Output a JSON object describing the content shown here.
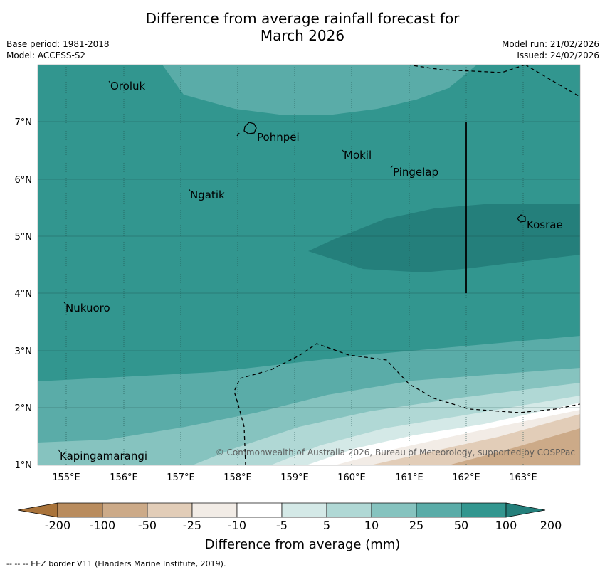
{
  "title": {
    "line1": "Difference from average rainfall forecast for",
    "line2": "March 2026"
  },
  "meta": {
    "base_period": "Base period: 1981-2018",
    "model": "Model: ACCESS-S2",
    "model_run": "Model run: 21/02/2026",
    "issued": "Issued: 24/02/2026"
  },
  "map": {
    "lon_ticks": [
      "155°E",
      "156°E",
      "157°E",
      "158°E",
      "159°E",
      "160°E",
      "161°E",
      "162°E",
      "163°E"
    ],
    "lat_ticks": [
      "7°N",
      "6°N",
      "5°N",
      "4°N",
      "3°N",
      "2°N",
      "1°N"
    ],
    "places": [
      {
        "name": "Oroluk"
      },
      {
        "name": "Pohnpei"
      },
      {
        "name": "Mokil"
      },
      {
        "name": "Pingelap"
      },
      {
        "name": "Ngatik"
      },
      {
        "name": "Kosrae"
      },
      {
        "name": "Nukuoro"
      },
      {
        "name": "Kapingamarangi"
      }
    ],
    "copyright": "© Commonwealth of Australia 2026, Bureau of Meteorology, supported by COSPPac"
  },
  "colorbar": {
    "labels": [
      "-200",
      "-100",
      "-50",
      "-25",
      "-10",
      "-5",
      "5",
      "10",
      "25",
      "50",
      "100",
      "200"
    ],
    "colors": [
      "#a9733a",
      "#b98c5e",
      "#ccaa88",
      "#e2cdb8",
      "#f2ece6",
      "#ffffff",
      "#d4e9e7",
      "#b0d8d5",
      "#86c3bf",
      "#5aaca8",
      "#32968f",
      "#247f7b"
    ],
    "xlabel": "Difference from average (mm)"
  },
  "footer": {
    "eez_note": "--  --  -- EEZ border V11 (Flanders Marine Institute, 2019)."
  }
}
